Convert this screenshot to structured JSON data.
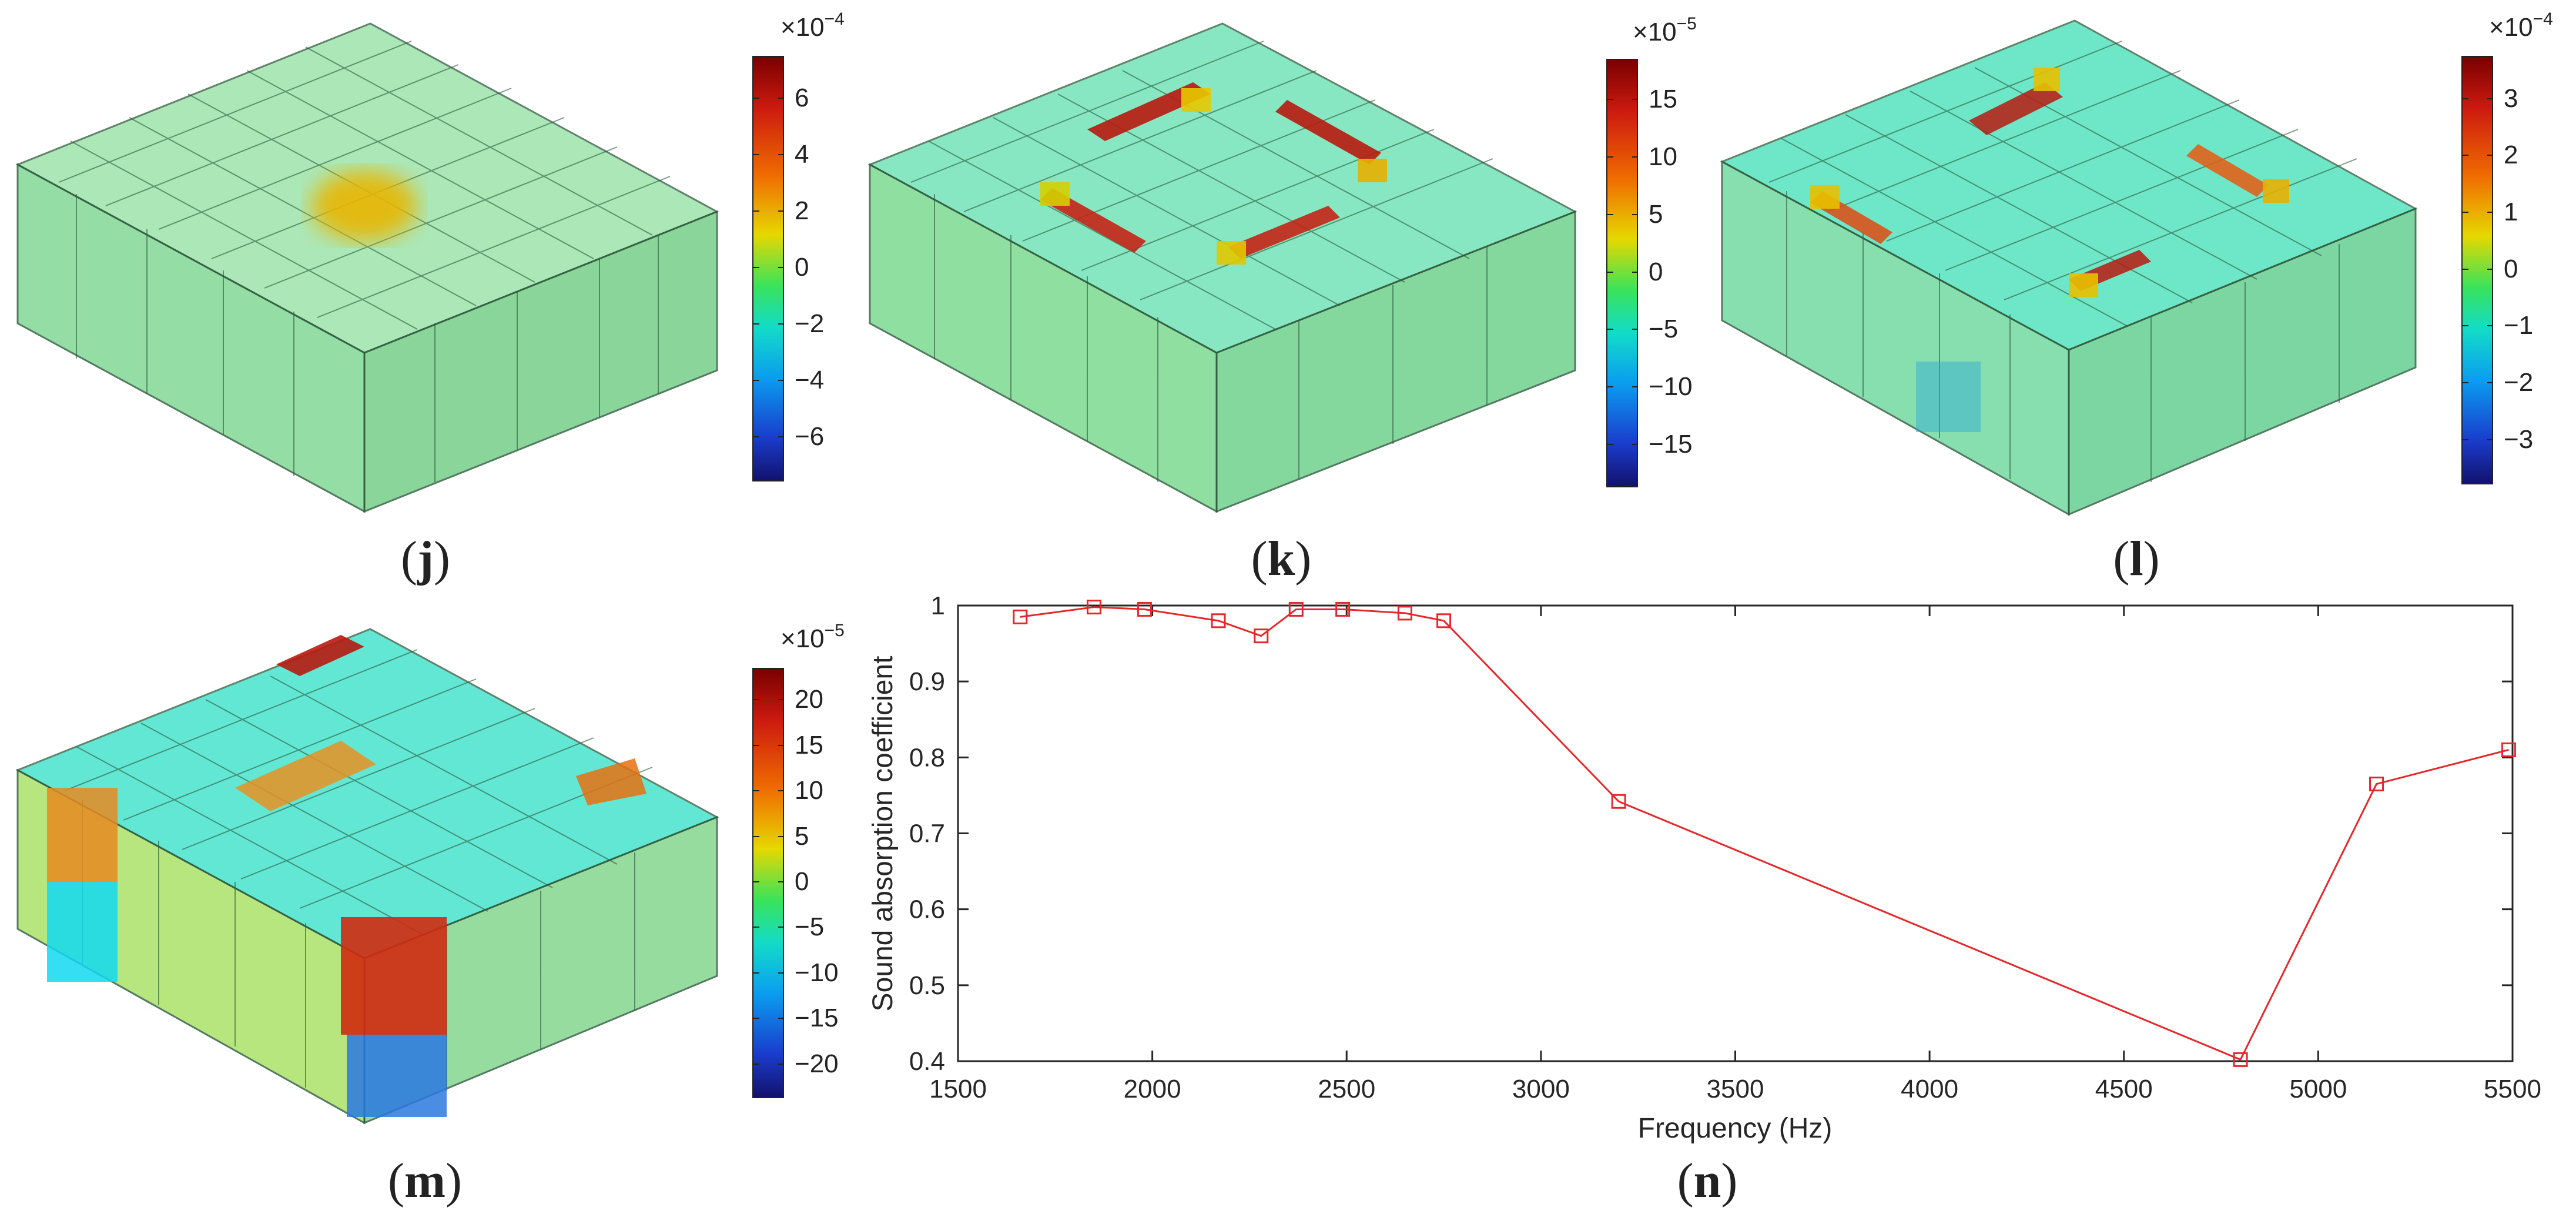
{
  "panels": {
    "j": {
      "label_open": "(",
      "letter": "j",
      "label_close": ")",
      "cbar": {
        "exponent_base": "×10",
        "exponent": "−4",
        "ticks": [
          "6",
          "4",
          "2",
          "0",
          "−2",
          "−4",
          "−6"
        ],
        "max": 7.5,
        "min": -7.5
      }
    },
    "k": {
      "label_open": "(",
      "letter": "k",
      "label_close": ")",
      "cbar": {
        "exponent_base": "×10",
        "exponent": "−5",
        "ticks": [
          "15",
          "10",
          "5",
          "0",
          "−5",
          "−10",
          "−15"
        ],
        "max": 18.5,
        "min": -18.5
      }
    },
    "l": {
      "label_open": "(",
      "letter": "l",
      "label_close": ")",
      "cbar": {
        "exponent_base": "×10",
        "exponent": "−4",
        "ticks": [
          "3",
          "2",
          "1",
          "0",
          "−1",
          "−2",
          "−3"
        ],
        "max": 3.75,
        "min": -3.75
      }
    },
    "m": {
      "label_open": "(",
      "letter": "m",
      "label_close": ")",
      "cbar": {
        "exponent_base": "×10",
        "exponent": "−5",
        "ticks": [
          "20",
          "15",
          "10",
          "5",
          "0",
          "−5",
          "−10",
          "−15",
          "−20"
        ],
        "max": 23.5,
        "min": -23.5
      }
    },
    "n": {
      "label_open": "(",
      "letter": "n",
      "label_close": ")"
    }
  },
  "colors": {
    "line": "#e8262a",
    "axis": "#262626",
    "grid": "#dddddd"
  },
  "chart_data": {
    "type": "line",
    "title": "",
    "xlabel": "Frequency (Hz)",
    "ylabel": "Sound absorption coefficient",
    "xlim": [
      1500,
      5500
    ],
    "ylim": [
      0.4,
      1.0
    ],
    "xticks": [
      1500,
      2000,
      2500,
      3000,
      3500,
      4000,
      4500,
      5000,
      5500
    ],
    "yticks": [
      0.4,
      0.5,
      0.6,
      0.7,
      0.8,
      0.9,
      1
    ],
    "xtick_labels": [
      "1500",
      "2000",
      "2500",
      "3000",
      "3500",
      "4000",
      "4500",
      "5000",
      "5500"
    ],
    "ytick_labels": [
      "0.4",
      "0.5",
      "0.6",
      "0.7",
      "0.8",
      "0.9",
      "1"
    ],
    "series": [
      {
        "name": "Sound absorption coefficient",
        "marker": "square",
        "x": [
          1660,
          1850,
          1980,
          2170,
          2280,
          2370,
          2490,
          2650,
          2750,
          3200,
          4800,
          5150,
          5490
        ],
        "y": [
          0.985,
          0.998,
          0.995,
          0.98,
          0.96,
          0.995,
          0.995,
          0.99,
          0.98,
          0.742,
          0.402,
          0.765,
          0.81
        ]
      }
    ]
  }
}
